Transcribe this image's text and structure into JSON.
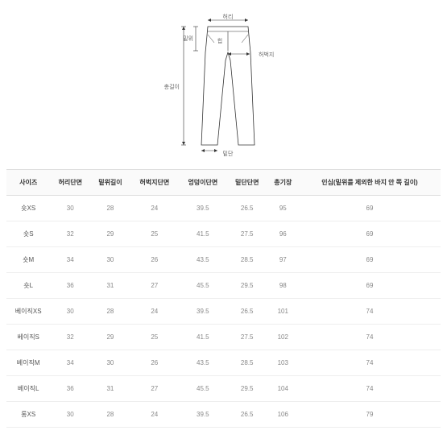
{
  "diagram": {
    "labels": {
      "waist": "허리",
      "rise": "밑위",
      "hip": "힙",
      "thigh": "허벅지",
      "total_length": "총길이",
      "hem": "밑단"
    },
    "stroke_color": "#333333",
    "fill_color": "#ffffff",
    "line_width": 0.8
  },
  "table": {
    "columns": [
      "사이즈",
      "허리단면",
      "밑위길이",
      "허벅지단면",
      "엉덩이단면",
      "밑단단면",
      "총기장",
      "인심(밑위를 제외한 바지 안 쪽 길이)"
    ],
    "rows": [
      [
        "숏XS",
        "30",
        "28",
        "24",
        "39.5",
        "26.5",
        "95",
        "69"
      ],
      [
        "숏S",
        "32",
        "29",
        "25",
        "41.5",
        "27.5",
        "96",
        "69"
      ],
      [
        "숏M",
        "34",
        "30",
        "26",
        "43.5",
        "28.5",
        "97",
        "69"
      ],
      [
        "숏L",
        "36",
        "31",
        "27",
        "45.5",
        "29.5",
        "98",
        "69"
      ],
      [
        "베이직XS",
        "30",
        "28",
        "24",
        "39.5",
        "26.5",
        "101",
        "74"
      ],
      [
        "베이직S",
        "32",
        "29",
        "25",
        "41.5",
        "27.5",
        "102",
        "74"
      ],
      [
        "베이직M",
        "34",
        "30",
        "26",
        "43.5",
        "28.5",
        "103",
        "74"
      ],
      [
        "베이직L",
        "36",
        "31",
        "27",
        "45.5",
        "29.5",
        "104",
        "74"
      ],
      [
        "롱XS",
        "30",
        "28",
        "24",
        "39.5",
        "26.5",
        "106",
        "79"
      ]
    ],
    "header_bg": "#fafafa",
    "border_color": "#dddddd",
    "row_border_color": "#eeeeee",
    "header_text_color": "#333333",
    "cell_text_color": "#888888",
    "size_text_color": "#555555"
  }
}
